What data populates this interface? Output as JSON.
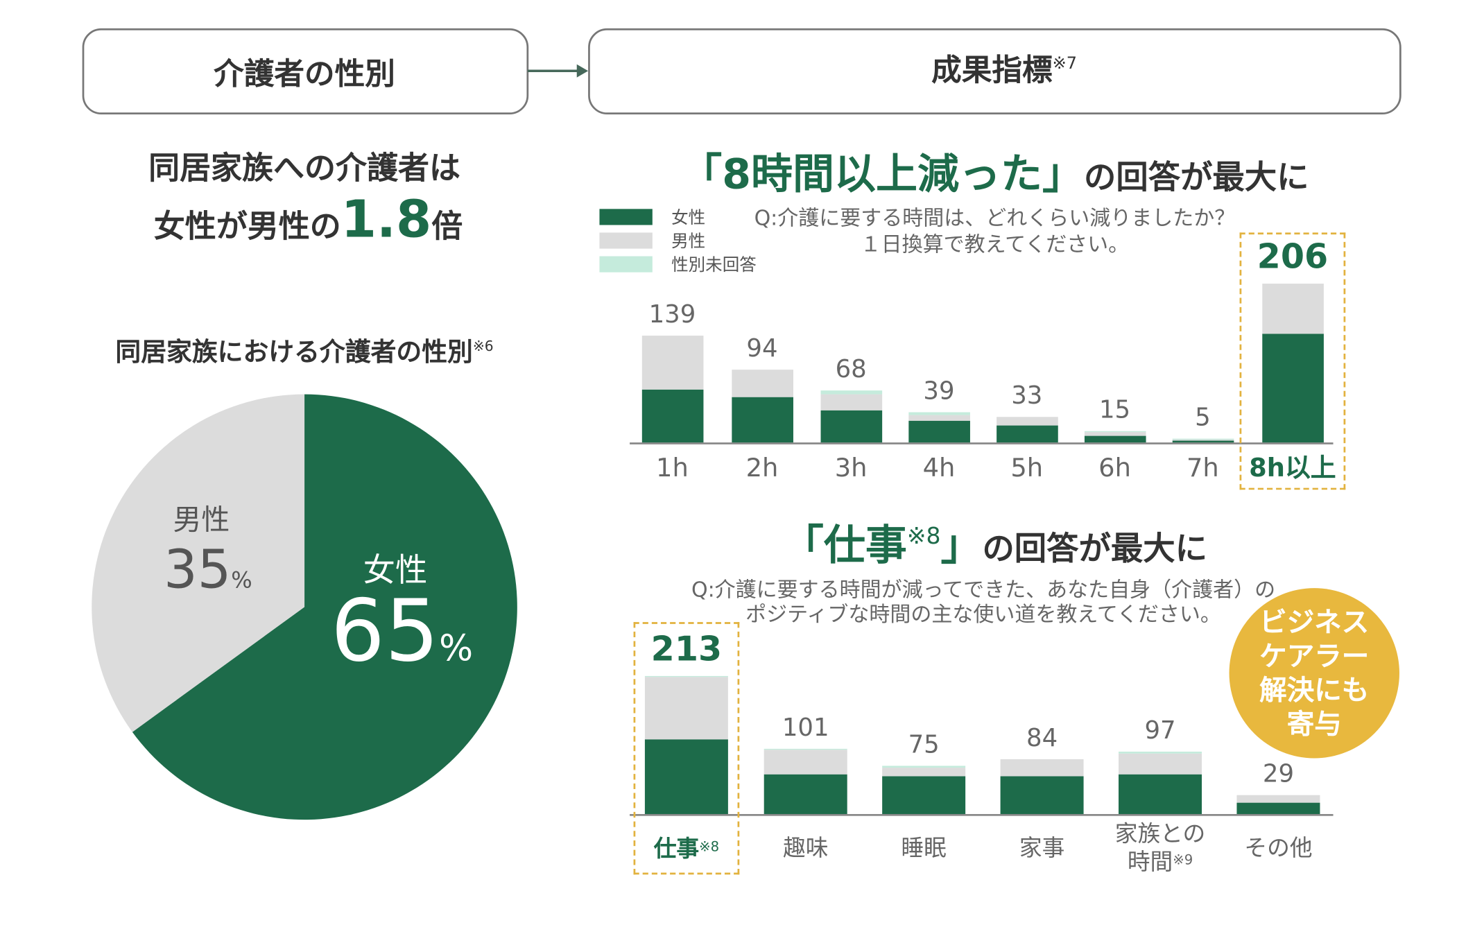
{
  "headers": {
    "left": "介護者の性別",
    "right": "成果指標",
    "right_note": "※7"
  },
  "lead": {
    "line1": "同居家族への介護者は",
    "line2_before": "女性が男性の",
    "ratio": 1.8,
    "line2_after": "倍"
  },
  "badge": {
    "lines": [
      "ビジネス",
      "ケアラー",
      "解決にも",
      "寄与"
    ],
    "color": "#e8b83e"
  },
  "chart_data": [
    {
      "type": "pie",
      "title": "同居家族における介護者の性別",
      "title_note": "※6",
      "unit": "%",
      "categories": [
        "女性",
        "男性"
      ],
      "values": [
        65,
        35
      ],
      "colors": [
        "#1d6b4a",
        "#dcdcdc"
      ]
    },
    {
      "type": "bar",
      "stacked": true,
      "legend": true,
      "title_highlight": "「8時間以上減った」",
      "title_rest": "の回答が最大に",
      "question": [
        "Q:介護に要する時間は、どれくらい減りましたか？",
        "１日換算で教えてください。"
      ],
      "categories": [
        "1h",
        "2h",
        "3h",
        "4h",
        "5h",
        "6h",
        "7h",
        "8h以上"
      ],
      "highlight_index": 7,
      "series": [
        {
          "name": "女性",
          "color": "#1d6b4a",
          "values": [
            69,
            59,
            42,
            28,
            22,
            8,
            3,
            141
          ]
        },
        {
          "name": "男性",
          "color": "#dcdcdc",
          "values": [
            70,
            35,
            21,
            7,
            11,
            5,
            1,
            65
          ]
        },
        {
          "name": "性別未回答",
          "color": "#c5ebdc",
          "values": [
            0,
            0,
            5,
            4,
            0,
            2,
            1,
            0
          ]
        }
      ],
      "totals": [
        139,
        94,
        68,
        39,
        33,
        15,
        5,
        206
      ]
    },
    {
      "type": "bar",
      "stacked": true,
      "legend": false,
      "title_highlight": "「仕事",
      "title_note": "※8",
      "title_highlight_end": "」",
      "title_rest": "の回答が最大に",
      "question": [
        "Q:介護に要する時間が減ってできた、あなた自身（介護者）の",
        "ポジティブな時間の主な使い道を教えてください。"
      ],
      "categories": [
        "仕事",
        "趣味",
        "睡眠",
        "家事",
        "家族との時間",
        "その他"
      ],
      "category_notes": [
        "※8",
        null,
        null,
        null,
        "※9",
        null
      ],
      "highlight_index": 0,
      "series": [
        {
          "name": "女性",
          "color": "#1d6b4a",
          "values": [
            115,
            62,
            58,
            59,
            61,
            18
          ]
        },
        {
          "name": "男性",
          "color": "#dcdcdc",
          "values": [
            96,
            37,
            14,
            25,
            33,
            11
          ]
        },
        {
          "name": "性別未回答",
          "color": "#c5ebdc",
          "values": [
            2,
            2,
            3,
            0,
            3,
            0
          ]
        }
      ],
      "totals": [
        213,
        101,
        75,
        84,
        97,
        29
      ]
    }
  ]
}
